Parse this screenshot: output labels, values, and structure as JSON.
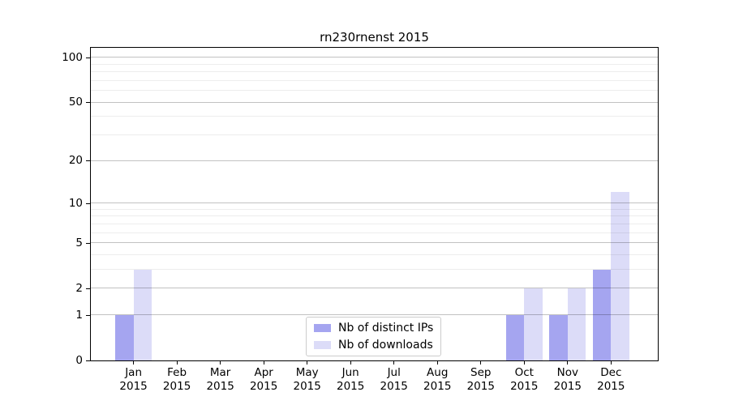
{
  "title": "rn230rnenst 2015",
  "chart_data": {
    "type": "bar",
    "title": "rn230rnenst 2015",
    "categories": [
      "Jan",
      "Feb",
      "Mar",
      "Apr",
      "May",
      "Jun",
      "Jul",
      "Aug",
      "Sep",
      "Oct",
      "Nov",
      "Dec"
    ],
    "x_tick_year": "2015",
    "series": [
      {
        "name": "Nb of distinct IPs",
        "color": "#a5a5f0",
        "values": [
          1,
          0,
          0,
          0,
          0,
          0,
          0,
          0,
          0,
          1,
          1,
          3
        ]
      },
      {
        "name": "Nb of downloads",
        "color": "#dcdcf8",
        "values": [
          3,
          0,
          0,
          0,
          0,
          0,
          0,
          0,
          0,
          2,
          2,
          12
        ]
      }
    ],
    "yscale": "log1p",
    "ylim": [
      0,
      116
    ],
    "y_major_ticks": [
      0,
      1,
      2,
      5,
      10,
      20,
      50,
      100
    ],
    "y_minor_ticks": [
      3,
      4,
      6,
      7,
      8,
      9,
      30,
      40,
      60,
      70,
      80,
      90
    ],
    "grid": true,
    "legend_position": "lower center"
  }
}
